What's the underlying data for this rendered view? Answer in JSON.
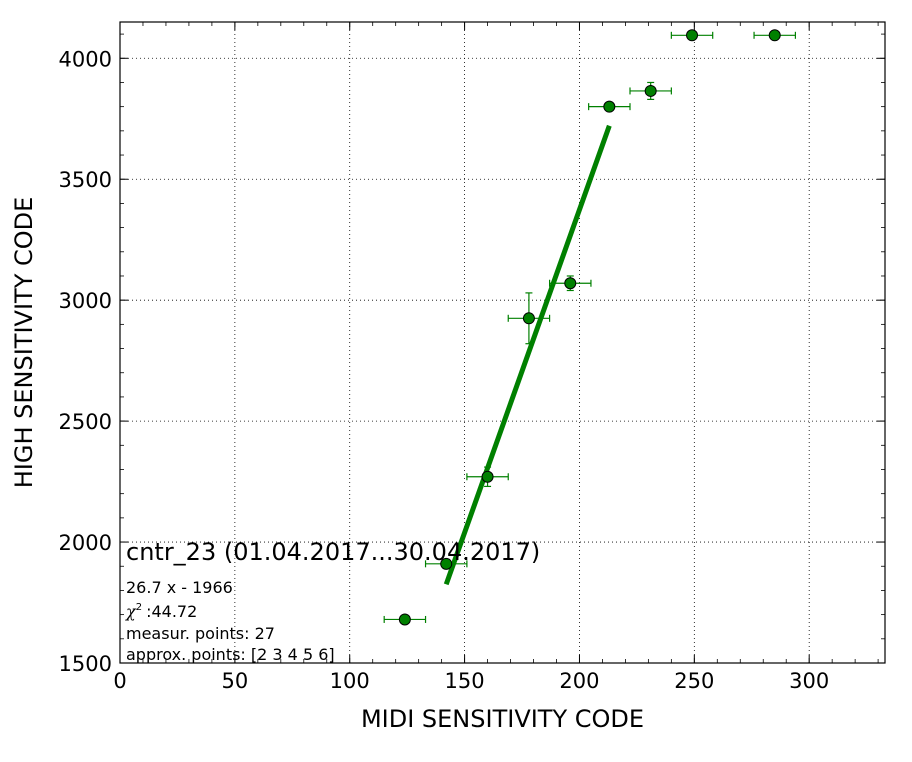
{
  "chart_data": {
    "type": "scatter",
    "xlabel": "MIDI SENSITIVITY CODE",
    "ylabel": "HIGH SENSITIVITY CODE",
    "xlim": [
      0,
      333
    ],
    "ylim": [
      1500,
      4150
    ],
    "x_ticks": [
      0,
      50,
      100,
      150,
      200,
      250,
      300
    ],
    "y_ticks": [
      1500,
      2000,
      2500,
      3000,
      3500,
      4000
    ],
    "x_tick_labels": [
      "0",
      "50",
      "100",
      "150",
      "200",
      "250",
      "300"
    ],
    "y_tick_labels": [
      "1500",
      "2000",
      "2500",
      "3000",
      "3500",
      "4000"
    ],
    "grid": true,
    "grid_style": "dotted",
    "colors": {
      "points": "#008000",
      "fit_line": "#008000",
      "error_bars": "#008000"
    },
    "points": [
      {
        "x": 124,
        "y": 1680,
        "xerr": 9,
        "yerr": 15
      },
      {
        "x": 142,
        "y": 1910,
        "xerr": 9,
        "yerr": 18
      },
      {
        "x": 160,
        "y": 2270,
        "xerr": 9,
        "yerr": 40
      },
      {
        "x": 178,
        "y": 2925,
        "xerr": 9,
        "yerr": 105
      },
      {
        "x": 196,
        "y": 3070,
        "xerr": 9,
        "yerr": 30
      },
      {
        "x": 213,
        "y": 3800,
        "xerr": 9,
        "yerr": 15
      },
      {
        "x": 231,
        "y": 3865,
        "xerr": 9,
        "yerr": 35
      },
      {
        "x": 249,
        "y": 4095,
        "xerr": 9,
        "yerr": 10
      },
      {
        "x": 285,
        "y": 4095,
        "xerr": 9,
        "yerr": 10
      }
    ],
    "fit_line": {
      "slope": 26.7,
      "intercept": -1966,
      "x_range": [
        142,
        213
      ]
    },
    "annotations": {
      "title": "cntr_23 (01.04.2017...30.04.2017)",
      "equation": "26.7 x - 1966",
      "chi2_symbol": "χ",
      "chi2_power": "2",
      "chi2_value": ":44.72",
      "measur_points": "measur. points: 27",
      "approx_points": "approx. points: [2 3 4 5 6]"
    }
  }
}
